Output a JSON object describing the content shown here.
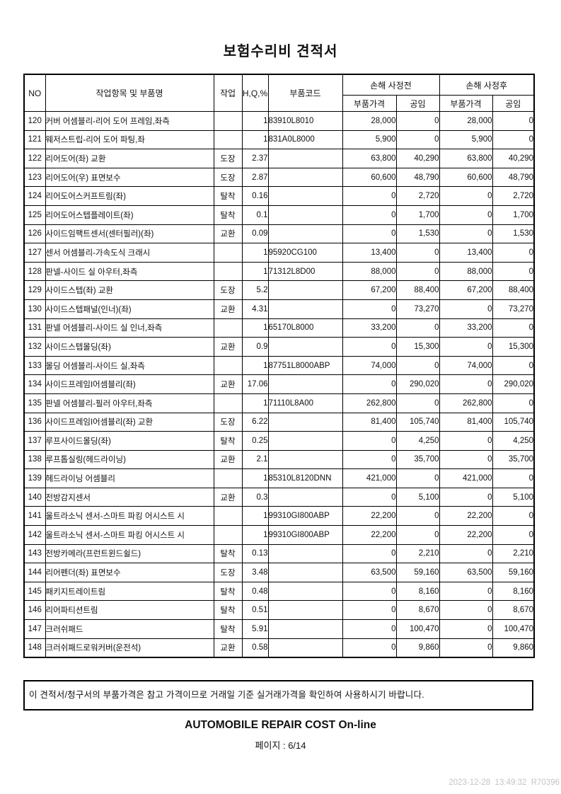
{
  "title": "보험수리비 견적서",
  "table": {
    "headers": {
      "no": "NO",
      "item": "작업항목 및 부품명",
      "work": "작업",
      "hq": "H,Q,%",
      "part_code": "부품코드",
      "before": "손해 사정전",
      "after": "손해 사정후",
      "part_price": "부품가격",
      "labor": "공임"
    },
    "rows": [
      [
        "120",
        "커버 어셈블리-리어 도어 프레임,좌측",
        "",
        "1",
        "83910L8010",
        "28,000",
        "0",
        "28,000",
        "0"
      ],
      [
        "121",
        "웨저스트립-리어 도어 파팅,좌",
        "",
        "1",
        "831A0L8000",
        "5,900",
        "0",
        "5,900",
        "0"
      ],
      [
        "122",
        "리어도어(좌) 교환",
        "도장",
        "2.37",
        "",
        "63,800",
        "40,290",
        "63,800",
        "40,290"
      ],
      [
        "123",
        "리어도어(우) 표면보수",
        "도장",
        "2.87",
        "",
        "60,600",
        "48,790",
        "60,600",
        "48,790"
      ],
      [
        "124",
        "리어도어스커프트림(좌)",
        "탈착",
        "0.16",
        "",
        "0",
        "2,720",
        "0",
        "2,720"
      ],
      [
        "125",
        "리어도어스텝플레이트(좌)",
        "탈착",
        "0.1",
        "",
        "0",
        "1,700",
        "0",
        "1,700"
      ],
      [
        "126",
        "사이드임팩트센서(센터필러)(좌)",
        "교환",
        "0.09",
        "",
        "0",
        "1,530",
        "0",
        "1,530"
      ],
      [
        "127",
        "센서 어셈블리-가속도식 크래시",
        "",
        "1",
        "95920CG100",
        "13,400",
        "0",
        "13,400",
        "0"
      ],
      [
        "128",
        "판넬-사이드 실 아우터,좌측",
        "",
        "1",
        "71312L8D00",
        "88,000",
        "0",
        "88,000",
        "0"
      ],
      [
        "129",
        "사이드스텝(좌) 교환",
        "도장",
        "5.2",
        "",
        "67,200",
        "88,400",
        "67,200",
        "88,400"
      ],
      [
        "130",
        "사이드스텝패널(인너)(좌)",
        "교환",
        "4.31",
        "",
        "0",
        "73,270",
        "0",
        "73,270"
      ],
      [
        "131",
        "판넬 어셈블리-사이드 실 인너,좌측",
        "",
        "1",
        "65170L8000",
        "33,200",
        "0",
        "33,200",
        "0"
      ],
      [
        "132",
        "사이드스텝몰딩(좌)",
        "교환",
        "0.9",
        "",
        "0",
        "15,300",
        "0",
        "15,300"
      ],
      [
        "133",
        "몰딩 어셈블리-사이드 실,좌측",
        "",
        "1",
        "87751L8000ABP",
        "74,000",
        "0",
        "74,000",
        "0"
      ],
      [
        "134",
        "사이드프레임I어셈블리(좌)",
        "교환",
        "17.06",
        "",
        "0",
        "290,020",
        "0",
        "290,020"
      ],
      [
        "135",
        "판넬 어셈블리-필러 아우터,좌측",
        "",
        "1",
        "71110L8A00",
        "262,800",
        "0",
        "262,800",
        "0"
      ],
      [
        "136",
        "사이드프레임I어셈블리(좌) 교환",
        "도장",
        "6.22",
        "",
        "81,400",
        "105,740",
        "81,400",
        "105,740"
      ],
      [
        "137",
        "루프사이드몰딩(좌)",
        "탈착",
        "0.25",
        "",
        "0",
        "4,250",
        "0",
        "4,250"
      ],
      [
        "138",
        "루프톱실링(헤드라이닝)",
        "교환",
        "2.1",
        "",
        "0",
        "35,700",
        "0",
        "35,700"
      ],
      [
        "139",
        "헤드라이닝 어셈블리",
        "",
        "1",
        "85310L8120DNN",
        "421,000",
        "0",
        "421,000",
        "0"
      ],
      [
        "140",
        "전방감지센서",
        "교환",
        "0.3",
        "",
        "0",
        "5,100",
        "0",
        "5,100"
      ],
      [
        "141",
        "울트라소닉 센서-스마트 파킹 어시스트 시",
        "",
        "1",
        "99310GI800ABP",
        "22,200",
        "0",
        "22,200",
        "0"
      ],
      [
        "142",
        "울트라소닉 센서-스마트 파킹 어시스트 시",
        "",
        "1",
        "99310GI800ABP",
        "22,200",
        "0",
        "22,200",
        "0"
      ],
      [
        "143",
        "전방카메라(프런트윈드쉴드)",
        "탈착",
        "0.13",
        "",
        "0",
        "2,210",
        "0",
        "2,210"
      ],
      [
        "144",
        "리어펜더(좌) 표면보수",
        "도장",
        "3.48",
        "",
        "63,500",
        "59,160",
        "63,500",
        "59,160"
      ],
      [
        "145",
        "패키지트레이트림",
        "탈착",
        "0.48",
        "",
        "0",
        "8,160",
        "0",
        "8,160"
      ],
      [
        "146",
        "리어파티션트림",
        "탈착",
        "0.51",
        "",
        "0",
        "8,670",
        "0",
        "8,670"
      ],
      [
        "147",
        "크러쉬패드",
        "탈착",
        "5.91",
        "",
        "0",
        "100,470",
        "0",
        "100,470"
      ],
      [
        "148",
        "크러쉬패드로워커버(운전석)",
        "교환",
        "0.58",
        "",
        "0",
        "9,860",
        "0",
        "9,860"
      ]
    ]
  },
  "notice": "이 견적서/청구서의 부품가격은 참고 가격이므로 거래일 기준 실거래가격을 확인하여 사용하시기 바랍니다.",
  "footer_title": "AUTOMOBILE REPAIR COST On-line",
  "page_label": "페이지 : 6/14",
  "timestamp": "2023-12-28  13:49:32  R70396"
}
